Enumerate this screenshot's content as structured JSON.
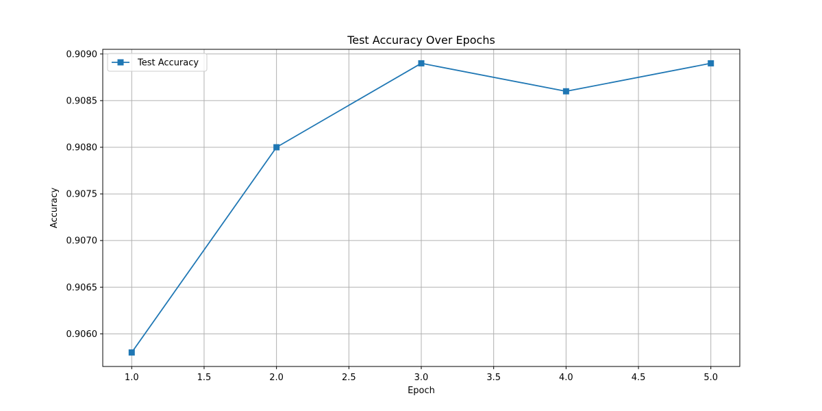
{
  "chart_data": {
    "type": "line",
    "title": "Test Accuracy Over Epochs",
    "xlabel": "Epoch",
    "ylabel": "Accuracy",
    "x": [
      1.0,
      2.0,
      3.0,
      4.0,
      5.0
    ],
    "series": [
      {
        "name": "Test Accuracy",
        "values": [
          0.9058,
          0.908,
          0.9089,
          0.9086,
          0.9089
        ],
        "color": "#1f77b4",
        "marker": "square"
      }
    ],
    "xlim": [
      0.8,
      5.2
    ],
    "ylim": [
      0.90565,
      0.90905
    ],
    "xticks": [
      "1.0",
      "1.5",
      "2.0",
      "2.5",
      "3.0",
      "3.5",
      "4.0",
      "4.5",
      "5.0"
    ],
    "yticks": [
      "0.9060",
      "0.9065",
      "0.9070",
      "0.9075",
      "0.9080",
      "0.9085",
      "0.9090"
    ],
    "grid": true,
    "legend_position": "top-left"
  }
}
